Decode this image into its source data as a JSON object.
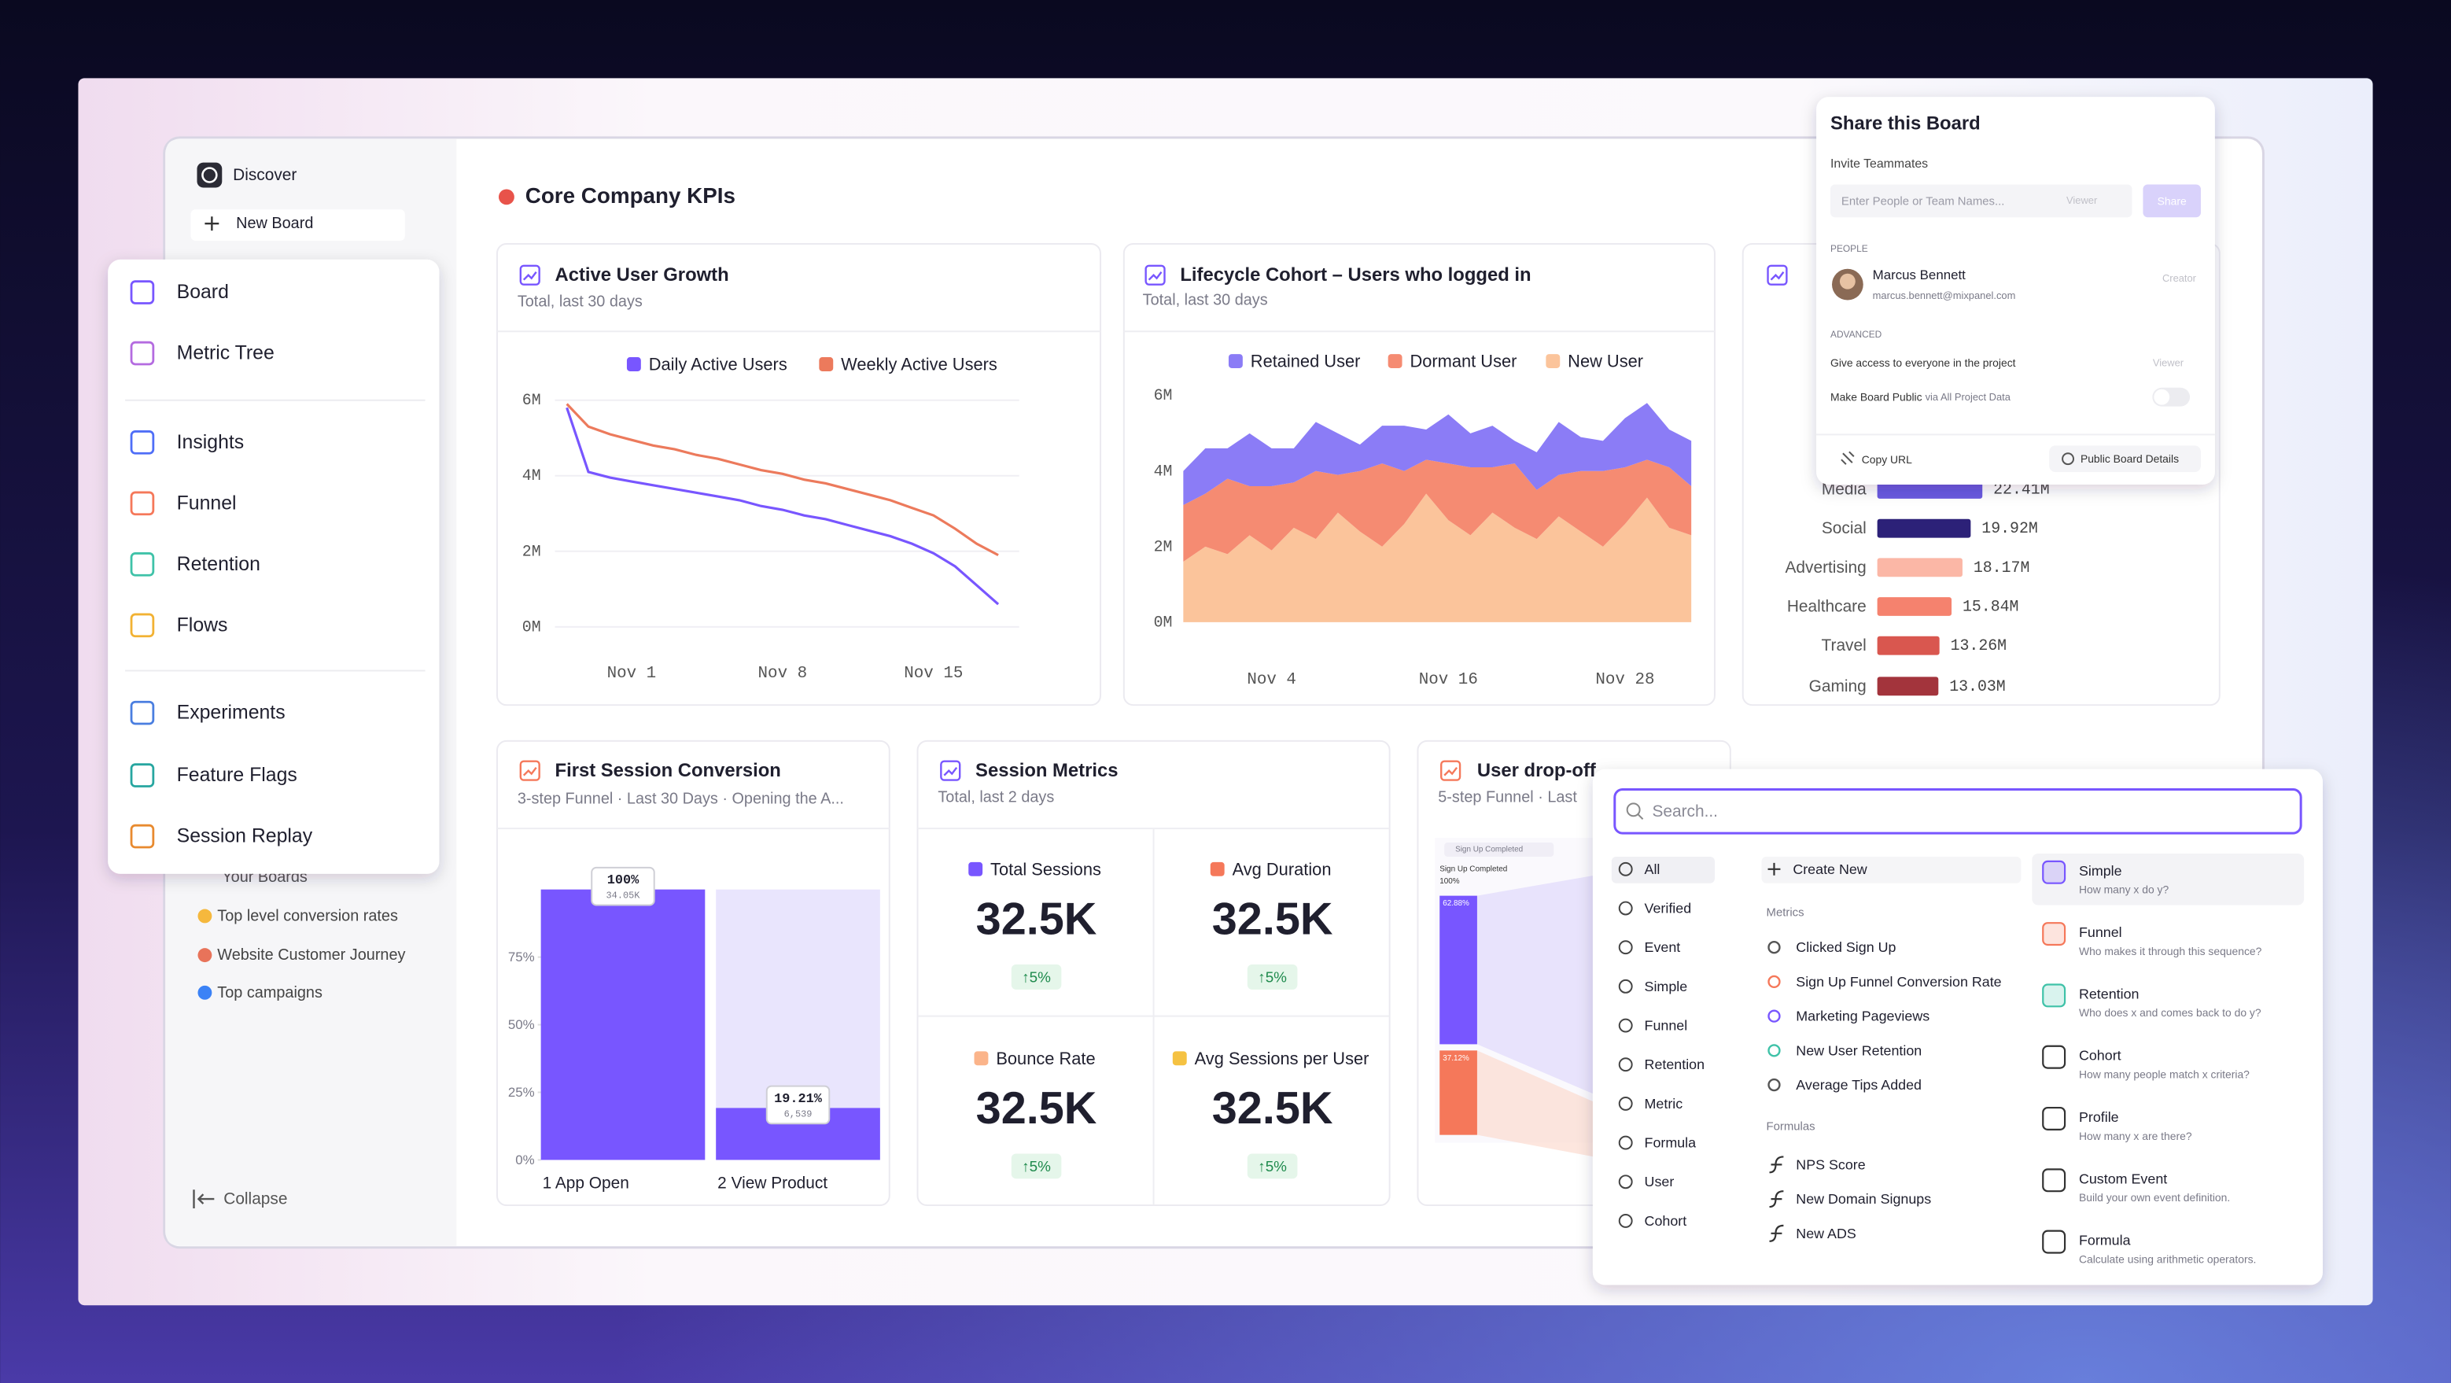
{
  "sidebar": {
    "discover": "Discover",
    "new_board": "New Board",
    "your_boards": "Your Boards",
    "boards": [
      "Top level conversion rates",
      "Website Customer Journey",
      "Top campaigns"
    ],
    "collapse": "Collapse"
  },
  "nav_menu": [
    "Board",
    "Metric Tree",
    "Insights",
    "Funnel",
    "Retention",
    "Flows",
    "Experiments",
    "Feature Flags",
    "Session Replay"
  ],
  "board_title": "Core Company KPIs",
  "active_user_growth": {
    "chart_data": {
      "type": "line",
      "title": "Active User Growth",
      "subtitle": "Total, last 30 days",
      "categories": [
        null,
        null,
        null,
        "Nov 1",
        null,
        null,
        null,
        null,
        null,
        null,
        "Nov 8",
        null,
        null,
        null,
        null,
        null,
        null,
        "Nov 15",
        null,
        null,
        null
      ],
      "series": [
        {
          "name": "Daily Active Users",
          "color": "#7856ff",
          "values": [
            5.8,
            4.1,
            3.95,
            3.85,
            3.75,
            3.65,
            3.55,
            3.45,
            3.35,
            3.2,
            3.1,
            2.95,
            2.85,
            2.7,
            2.55,
            2.4,
            2.2,
            1.95,
            1.6,
            1.1,
            0.6
          ]
        },
        {
          "name": "Weekly Active Users",
          "color": "#ec7a5c",
          "values": [
            5.9,
            5.3,
            5.1,
            4.95,
            4.8,
            4.7,
            4.55,
            4.45,
            4.3,
            4.15,
            4.05,
            3.9,
            3.8,
            3.65,
            3.5,
            3.35,
            3.15,
            2.95,
            2.6,
            2.2,
            1.9
          ]
        }
      ],
      "ylim": [
        0,
        6
      ],
      "yticks": [
        {
          "value": 0,
          "label": "0M"
        },
        {
          "value": 2,
          "label": "2M"
        },
        {
          "value": 4,
          "label": "4M"
        },
        {
          "value": 6,
          "label": "6M"
        }
      ],
      "grid": true
    }
  },
  "lifecycle_cohort": {
    "chart_data": {
      "type": "stacked_area",
      "title": "Lifecycle Cohort – Users who logged in",
      "subtitle": "Total, last 30 days",
      "categories": [
        null,
        null,
        null,
        null,
        "Nov 4",
        null,
        null,
        null,
        null,
        null,
        null,
        null,
        "Nov 16",
        null,
        null,
        null,
        null,
        null,
        null,
        null,
        "Nov 28",
        null,
        null,
        null
      ],
      "series": [
        {
          "name": "Retained User",
          "color": "#8b7cf6",
          "values": [
            0.9,
            1.2,
            0.8,
            1.4,
            1.0,
            0.9,
            1.3,
            1.1,
            0.7,
            1.0,
            1.2,
            0.8,
            1.3,
            0.9,
            1.1,
            0.6,
            1.0,
            1.4,
            0.9,
            0.8,
            1.3,
            1.5,
            1.0,
            1.2
          ]
        },
        {
          "name": "Dormant User",
          "color": "#f58b72",
          "values": [
            1.5,
            1.4,
            2.0,
            1.3,
            1.7,
            1.2,
            1.8,
            1.0,
            1.6,
            2.2,
            1.4,
            0.9,
            1.5,
            1.8,
            1.2,
            1.7,
            1.3,
            1.1,
            1.6,
            2.0,
            1.5,
            1.0,
            1.6,
            1.3
          ]
        },
        {
          "name": "New User",
          "color": "#fbc49b",
          "values": [
            1.6,
            2.0,
            1.8,
            2.3,
            1.9,
            2.5,
            2.2,
            2.9,
            2.4,
            2.0,
            2.6,
            3.4,
            2.7,
            2.3,
            2.9,
            2.5,
            2.2,
            2.8,
            2.4,
            2.0,
            2.6,
            3.3,
            2.5,
            2.3
          ]
        }
      ],
      "ylim": [
        0,
        6
      ],
      "yticks": [
        {
          "value": 0,
          "label": "0M"
        },
        {
          "value": 2,
          "label": "2M"
        },
        {
          "value": 4,
          "label": "4M"
        },
        {
          "value": 6,
          "label": "6M"
        }
      ],
      "grid": false
    }
  },
  "industry_breakdown": {
    "chart_data": {
      "type": "hbar",
      "categories": [
        "Media",
        "Social",
        "Advertising",
        "Healthcare",
        "Travel",
        "Gaming"
      ],
      "values": [
        22.41,
        19.92,
        18.17,
        15.84,
        13.26,
        13.03
      ],
      "value_labels": [
        "22.41M",
        "19.92M",
        "18.17M",
        "15.84M",
        "13.26M",
        "13.03M"
      ],
      "colors": [
        "#6a5ae0",
        "#2c2178",
        "#fbb7a6",
        "#f5826e",
        "#d9574f",
        "#a3343c"
      ]
    }
  },
  "first_session_conversion": {
    "chart_data": {
      "type": "funnel",
      "title": "First Session Conversion",
      "subtitle": "3-step Funnel · Last 30 Days · Opening the A...",
      "categories": [
        "1 App Open",
        "2 View Product"
      ],
      "values": [
        100,
        19.21
      ],
      "value_labels": [
        "100%",
        "19.21%"
      ],
      "count_labels": [
        "34.05K",
        "6,539"
      ],
      "color": "#7856ff",
      "ylim": [
        0,
        100
      ],
      "yticks": [
        {
          "value": 0,
          "label": "0%"
        },
        {
          "value": 25,
          "label": "25%"
        },
        {
          "value": 50,
          "label": "50%"
        },
        {
          "value": 75,
          "label": "75%"
        }
      ]
    }
  },
  "session_metrics": {
    "title": "Session Metrics",
    "subtitle": "Total, last 2 days",
    "tiles": [
      {
        "label": "Total Sessions",
        "value": "32.5K",
        "change": "↑5%",
        "color": "#7856ff"
      },
      {
        "label": "Avg Duration",
        "value": "32.5K",
        "change": "↑5%",
        "color": "#f5785a"
      },
      {
        "label": "Bounce Rate",
        "value": "32.5K",
        "change": "↑5%",
        "color": "#fbb48a"
      },
      {
        "label": "Avg Sessions per User",
        "value": "32.5K",
        "change": "↑5%",
        "color": "#f5c242"
      }
    ]
  },
  "user_drop_off": {
    "title": "User drop-off",
    "subtitle": "5-step Funnel · Last",
    "step": "Sign Up Completed",
    "first_value": "100%",
    "bars": [
      "62.88%",
      "37.12%"
    ]
  },
  "share": {
    "title": "Share this Board",
    "invite_label": "Invite Teammates",
    "placeholder": "Enter People or Team Names...",
    "role": "Viewer",
    "share_button": "Share",
    "people_heading": "PEOPLE",
    "person": {
      "name": "Marcus Bennett",
      "email": "marcus.bennett@mixpanel.com",
      "role": "Creator"
    },
    "advanced_heading": "ADVANCED",
    "give_access": "Give access to everyone in the project",
    "give_access_role": "Viewer",
    "make_public": "Make Board Public",
    "make_public_note": "via All Project Data",
    "copy_url": "Copy URL",
    "public_details": "Public Board Details"
  },
  "search": {
    "placeholder": "Search...",
    "filters": [
      "All",
      "Verified",
      "Event",
      "Simple",
      "Funnel",
      "Retention",
      "Metric",
      "Formula",
      "User",
      "Cohort"
    ],
    "create_new": "Create New",
    "metrics_heading": "Metrics",
    "metrics": [
      "Clicked Sign Up",
      "Sign Up Funnel Conversion Rate",
      "Marketing Pageviews",
      "New User Retention",
      "Average Tips Added"
    ],
    "formulas_heading": "Formulas",
    "formulas": [
      "NPS Score",
      "New Domain Signups",
      "New ADS"
    ],
    "types": [
      {
        "title": "Simple",
        "description": "How many x do y?"
      },
      {
        "title": "Funnel",
        "description": "Who makes it through this sequence?"
      },
      {
        "title": "Retention",
        "description": "Who does x and comes back to do y?"
      },
      {
        "title": "Cohort",
        "description": "How many people match x criteria?"
      },
      {
        "title": "Profile",
        "description": "How many x are there?"
      },
      {
        "title": "Custom Event",
        "description": "Build your own event definition."
      },
      {
        "title": "Formula",
        "description": "Calculate using arithmetic operators."
      }
    ]
  }
}
